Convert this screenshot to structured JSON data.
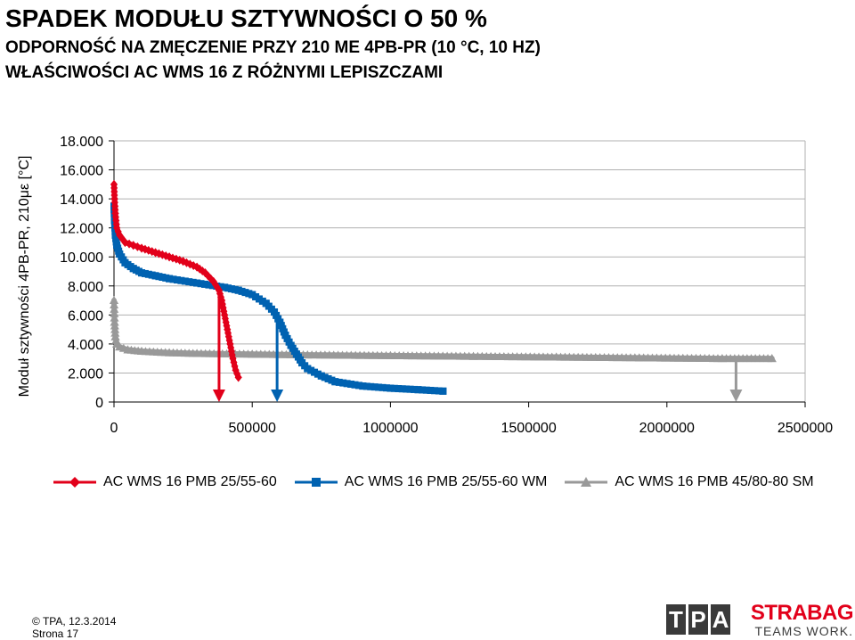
{
  "header": {
    "title": "SPADEK MODUŁU SZTYWNOŚCI O 50 %",
    "subtitle_1": "ODPORNOŚĆ NA ZMĘCZENIE PRZY 210 ME 4PB-PR (10 °C, 10 HZ)",
    "subtitle_2": "WŁAŚCIWOŚCI AC WMS 16 Z RÓŻNYMI LEPISZCZAMI"
  },
  "chart_data": {
    "type": "scatter",
    "ylabel": "Moduł sztywności 4PB-PR, 210με [°C]",
    "xlabel": "",
    "xlim": [
      0,
      2500000
    ],
    "ylim": [
      0,
      18000
    ],
    "x_ticks": [
      0,
      500000,
      1000000,
      1500000,
      2000000,
      2500000
    ],
    "x_tick_labels": [
      "0",
      "500000",
      "1000000",
      "1500000",
      "2000000",
      "2500000"
    ],
    "y_ticks": [
      0,
      2000,
      4000,
      6000,
      8000,
      10000,
      12000,
      14000,
      16000,
      18000
    ],
    "y_tick_labels": [
      "0",
      "2.000",
      "4.000",
      "6.000",
      "8.000",
      "10.000",
      "12.000",
      "14.000",
      "16.000",
      "18.000"
    ],
    "grid": "horizontal",
    "legend_position": "bottom",
    "series": [
      {
        "name": "AC WMS 16 PMB 25/55-60",
        "color": "#e2001a",
        "marker": "diamond",
        "x": [
          0,
          2000,
          5000,
          10000,
          20000,
          40000,
          70000,
          100000,
          150000,
          200000,
          250000,
          300000,
          330000,
          360000,
          380000,
          390000,
          400000,
          410000,
          420000,
          430000,
          440000,
          450000
        ],
        "y": [
          15000,
          14000,
          13000,
          12000,
          11500,
          11000,
          10800,
          10600,
          10300,
          10000,
          9700,
          9300,
          8900,
          8300,
          7700,
          7000,
          6000,
          5000,
          4000,
          3000,
          2200,
          1700
        ]
      },
      {
        "name": "AC WMS 16 PMB 25/55-60 WM",
        "color": "#0062b1",
        "marker": "square",
        "x": [
          0,
          2000,
          5000,
          10000,
          20000,
          40000,
          70000,
          100000,
          150000,
          200000,
          300000,
          400000,
          450000,
          500000,
          550000,
          580000,
          600000,
          620000,
          640000,
          660000,
          680000,
          700000,
          750000,
          800000,
          900000,
          1000000,
          1100000,
          1190000
        ],
        "y": [
          13500,
          12500,
          11500,
          10800,
          10200,
          9600,
          9200,
          8900,
          8700,
          8500,
          8200,
          7900,
          7700,
          7400,
          6800,
          6200,
          5500,
          4600,
          3900,
          3300,
          2700,
          2300,
          1800,
          1400,
          1100,
          950,
          850,
          750
        ]
      },
      {
        "name": "AC WMS 16 PMB 45/80-80 SM",
        "color": "#999999",
        "marker": "triangle",
        "x": [
          0,
          2000,
          5000,
          10000,
          20000,
          50000,
          100000,
          200000,
          300000,
          500000,
          700000,
          1000000,
          1300000,
          1600000,
          1900000,
          2200000,
          2380000
        ],
        "y": [
          7000,
          5500,
          4500,
          4000,
          3800,
          3600,
          3500,
          3400,
          3350,
          3300,
          3250,
          3200,
          3150,
          3100,
          3050,
          3000,
          3000
        ]
      }
    ],
    "annotations": [
      {
        "type": "arrow",
        "x": 380000,
        "color": "#e2001a"
      },
      {
        "type": "arrow",
        "x": 590000,
        "color": "#0062b1"
      },
      {
        "type": "arrow",
        "x": 2250000,
        "color": "#999999"
      }
    ]
  },
  "legend": {
    "items": [
      "AC WMS 16 PMB 25/55-60",
      "AC WMS 16 PMB 25/55-60 WM",
      "AC WMS 16 PMB 45/80-80 SM"
    ]
  },
  "footer": {
    "copyright": "© TPA, 12.3.2014",
    "page": "Strona 17"
  },
  "logos": {
    "tpa_letters": [
      "T",
      "P",
      "A"
    ],
    "strabag_name": "STRABAG",
    "strabag_claim": "TEAMS WORK."
  }
}
